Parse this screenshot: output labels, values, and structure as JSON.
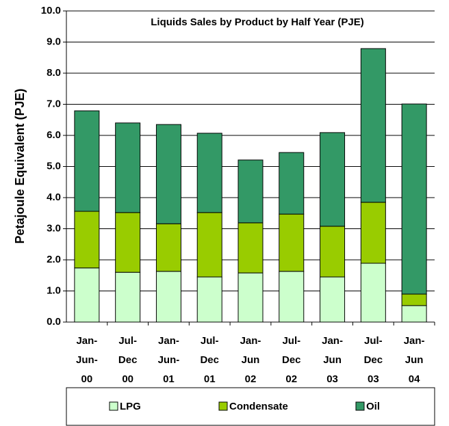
{
  "chart_data": {
    "type": "stacked-bar",
    "title": "Liquids Sales by Product by Half Year (PJE)",
    "y_label": "Petajoule Equivalent (PJE)",
    "categories": [
      "Jan-\nJun-\n00",
      "Jul-\nDec\n00",
      "Jan-\nJun-\n01",
      "Jul-\nDec\n01",
      "Jan-\nJun\n02",
      "Jul-\nDec\n02",
      "Jan-\nJun\n03",
      "Jul-\nDec\n03",
      "Jan-\nJun\n04"
    ],
    "series": [
      {
        "name": "LPG",
        "color": "#ccffcc",
        "values": [
          1.74,
          1.6,
          1.63,
          1.45,
          1.58,
          1.63,
          1.45,
          1.89,
          0.53
        ]
      },
      {
        "name": "Condensate",
        "color": "#99cc00",
        "values": [
          1.82,
          1.92,
          1.53,
          2.07,
          1.61,
          1.84,
          1.63,
          1.96,
          0.37
        ]
      },
      {
        "name": "Oil",
        "color": "#339966",
        "values": [
          3.23,
          2.88,
          3.19,
          2.55,
          2.02,
          1.98,
          3.01,
          4.94,
          6.11
        ]
      }
    ],
    "ylim": [
      0,
      10
    ],
    "yticks": [
      {
        "value": 0,
        "label": "0.0"
      },
      {
        "value": 1,
        "label": "1.0"
      },
      {
        "value": 2,
        "label": "2.0"
      },
      {
        "value": 3,
        "label": "3.0"
      },
      {
        "value": 4,
        "label": "4.0"
      },
      {
        "value": 5,
        "label": "5.0"
      },
      {
        "value": 6,
        "label": "6.0"
      },
      {
        "value": 7,
        "label": "7.0"
      },
      {
        "value": 8,
        "label": "8.0"
      },
      {
        "value": 9,
        "label": "9.0"
      },
      {
        "value": 10,
        "label": "10.0"
      }
    ],
    "grid": true
  }
}
